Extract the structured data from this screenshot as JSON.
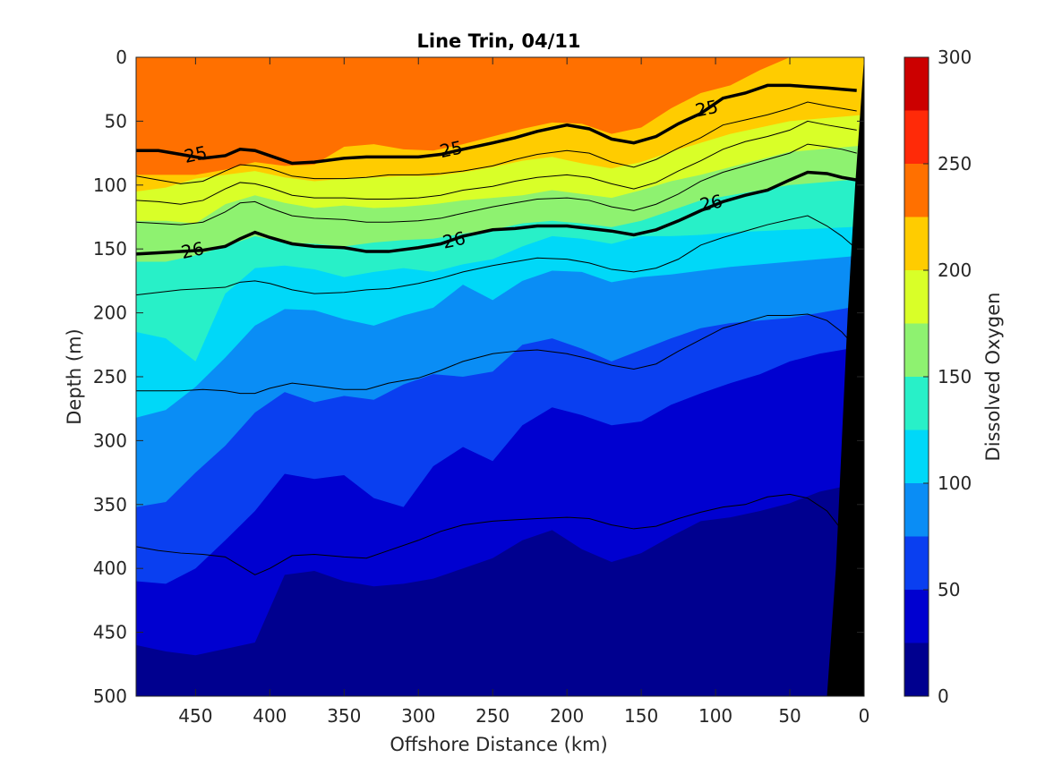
{
  "chart_data": {
    "type": "contourf",
    "title": "Line Trin, 04/11",
    "xlabel": "Offshore Distance (km)",
    "ylabel": "Depth (m)",
    "xlim": [
      490,
      0
    ],
    "ylim": [
      0,
      500
    ],
    "x_reversed": true,
    "y_reversed": true,
    "xticks": [
      450,
      400,
      350,
      300,
      250,
      200,
      150,
      100,
      50,
      0
    ],
    "yticks": [
      0,
      50,
      100,
      150,
      200,
      250,
      300,
      350,
      400,
      450,
      500
    ],
    "colorbar": {
      "label": "Dissolved Oxygen",
      "ticks": [
        0,
        50,
        100,
        150,
        200,
        250,
        300
      ],
      "levels": [
        0,
        25,
        50,
        75,
        100,
        125,
        150,
        175,
        200,
        225,
        250,
        275,
        300
      ],
      "colors": [
        "#00008f",
        "#0000d0",
        "#0a3ff0",
        "#0a8df5",
        "#00d8f8",
        "#28f0c8",
        "#8ef270",
        "#d9ff28",
        "#ffcc00",
        "#ff7000",
        "#ff2a08",
        "#cc0000"
      ]
    },
    "land_color": "#000000",
    "oxygen_level_depths": {
      "x_km": [
        490,
        470,
        450,
        430,
        410,
        390,
        370,
        350,
        330,
        310,
        290,
        270,
        250,
        230,
        210,
        190,
        170,
        150,
        130,
        110,
        90,
        70,
        50,
        30,
        10,
        0
      ],
      "levels": [
        {
          "value": 25,
          "depth_m": [
            460,
            465,
            468,
            463,
            458,
            405,
            402,
            410,
            414,
            412,
            408,
            400,
            392,
            378,
            370,
            385,
            395,
            388,
            375,
            363,
            360,
            355,
            349,
            340,
            335,
            330
          ]
        },
        {
          "value": 50,
          "depth_m": [
            410,
            412,
            400,
            378,
            355,
            326,
            330,
            327,
            345,
            352,
            320,
            305,
            316,
            288,
            274,
            280,
            288,
            285,
            272,
            263,
            255,
            248,
            238,
            232,
            228,
            225
          ]
        },
        {
          "value": 75,
          "depth_m": [
            352,
            348,
            325,
            304,
            278,
            262,
            270,
            265,
            268,
            256,
            248,
            250,
            246,
            225,
            220,
            228,
            238,
            229,
            220,
            212,
            208,
            206,
            204,
            200,
            196,
            192
          ]
        },
        {
          "value": 100,
          "depth_m": [
            282,
            276,
            258,
            235,
            210,
            197,
            198,
            205,
            210,
            202,
            196,
            178,
            190,
            175,
            167,
            168,
            176,
            172,
            170,
            167,
            164,
            162,
            160,
            158,
            156,
            154
          ]
        },
        {
          "value": 125,
          "depth_m": [
            215,
            220,
            238,
            185,
            165,
            163,
            166,
            172,
            168,
            165,
            168,
            162,
            158,
            148,
            140,
            142,
            146,
            140,
            140,
            139,
            137,
            136,
            135,
            134,
            133,
            132
          ]
        },
        {
          "value": 150,
          "depth_m": [
            160,
            160,
            155,
            148,
            140,
            145,
            146,
            148,
            145,
            143,
            142,
            138,
            135,
            130,
            128,
            130,
            133,
            128,
            120,
            112,
            108,
            104,
            100,
            98,
            96,
            95
          ]
        },
        {
          "value": 175,
          "depth_m": [
            128,
            128,
            130,
            115,
            108,
            114,
            118,
            116,
            118,
            117,
            115,
            112,
            110,
            108,
            104,
            107,
            110,
            104,
            97,
            92,
            86,
            80,
            74,
            72,
            70,
            69
          ]
        },
        {
          "value": 200,
          "depth_m": [
            105,
            102,
            95,
            92,
            89,
            94,
            97,
            95,
            94,
            93,
            93,
            90,
            86,
            81,
            78,
            83,
            87,
            82,
            74,
            67,
            60,
            55,
            50,
            48,
            46,
            45
          ]
        },
        {
          "value": 225,
          "depth_m": [
            92,
            92,
            92,
            88,
            82,
            85,
            84,
            70,
            68,
            72,
            73,
            68,
            62,
            56,
            51,
            52,
            60,
            55,
            40,
            28,
            22,
            10,
            0,
            0,
            0,
            0
          ]
        }
      ]
    },
    "density_contours": {
      "x_km": [
        490,
        475,
        460,
        445,
        430,
        420,
        410,
        400,
        385,
        370,
        350,
        335,
        320,
        300,
        285,
        270,
        250,
        235,
        220,
        200,
        185,
        170,
        155,
        140,
        125,
        110,
        95,
        80,
        65,
        50,
        38,
        25,
        15,
        5
      ],
      "labeled": [
        {
          "label": "25",
          "depth_m": [
            73,
            73,
            76,
            79,
            77,
            72,
            73,
            77,
            83,
            82,
            79,
            78,
            78,
            78,
            76,
            72,
            67,
            63,
            58,
            53,
            56,
            64,
            67,
            62,
            52,
            44,
            32,
            28,
            22,
            22,
            23,
            24,
            25,
            26
          ]
        },
        {
          "label": "26",
          "depth_m": [
            154,
            153,
            152,
            151,
            148,
            142,
            137,
            141,
            146,
            148,
            149,
            152,
            152,
            149,
            146,
            140,
            135,
            134,
            132,
            132,
            134,
            136,
            139,
            135,
            128,
            120,
            113,
            108,
            104,
            96,
            90,
            91,
            94,
            96
          ]
        }
      ],
      "thin": [
        {
          "depth_m": [
            93,
            96,
            99,
            97,
            89,
            84,
            85,
            87,
            93,
            95,
            95,
            94,
            92,
            92,
            91,
            89,
            85,
            80,
            76,
            73,
            75,
            82,
            86,
            80,
            71,
            63,
            53,
            49,
            45,
            40,
            35,
            38,
            40,
            42
          ]
        },
        {
          "depth_m": [
            112,
            113,
            115,
            112,
            103,
            98,
            99,
            102,
            108,
            110,
            110,
            111,
            111,
            110,
            108,
            104,
            101,
            97,
            94,
            92,
            94,
            99,
            103,
            98,
            89,
            81,
            72,
            66,
            62,
            57,
            50,
            53,
            55,
            57
          ]
        },
        {
          "depth_m": [
            129,
            130,
            131,
            129,
            121,
            114,
            113,
            118,
            124,
            126,
            127,
            129,
            129,
            128,
            126,
            122,
            117,
            114,
            111,
            110,
            112,
            117,
            120,
            115,
            107,
            97,
            90,
            85,
            80,
            75,
            68,
            70,
            72,
            75
          ]
        },
        {
          "depth_m": [
            186,
            184,
            182,
            181,
            180,
            176,
            175,
            177,
            182,
            185,
            184,
            182,
            181,
            177,
            173,
            168,
            163,
            160,
            157,
            158,
            161,
            166,
            168,
            165,
            158,
            147,
            141,
            136,
            131,
            127,
            124,
            132,
            140,
            150
          ]
        },
        {
          "depth_m": [
            261,
            261,
            261,
            260,
            261,
            263,
            263,
            259,
            255,
            257,
            260,
            260,
            255,
            251,
            245,
            238,
            232,
            230,
            229,
            232,
            236,
            241,
            244,
            240,
            230,
            221,
            212,
            207,
            202,
            202,
            201,
            206,
            215,
            228
          ]
        },
        {
          "depth_m": [
            383,
            386,
            388,
            389,
            391,
            398,
            405,
            400,
            390,
            389,
            391,
            392,
            386,
            378,
            371,
            366,
            363,
            362,
            361,
            360,
            361,
            366,
            369,
            367,
            361,
            356,
            352,
            350,
            344,
            342,
            345,
            355,
            370,
            385
          ]
        }
      ]
    },
    "label_positions": [
      {
        "text": "25",
        "x_km": 450,
        "depth_m": 76
      },
      {
        "text": "25",
        "x_km": 278,
        "depth_m": 72
      },
      {
        "text": "25",
        "x_km": 106,
        "depth_m": 40
      },
      {
        "text": "26",
        "x_km": 452,
        "depth_m": 151
      },
      {
        "text": "26",
        "x_km": 276,
        "depth_m": 143
      },
      {
        "text": "26",
        "x_km": 103,
        "depth_m": 114
      }
    ],
    "bottom_km": [
      {
        "depth_m": 0,
        "x_km": 0
      },
      {
        "depth_m": 100,
        "x_km": 6
      },
      {
        "depth_m": 200,
        "x_km": 11
      },
      {
        "depth_m": 300,
        "x_km": 15
      },
      {
        "depth_m": 400,
        "x_km": 19
      },
      {
        "depth_m": 500,
        "x_km": 25
      }
    ]
  }
}
